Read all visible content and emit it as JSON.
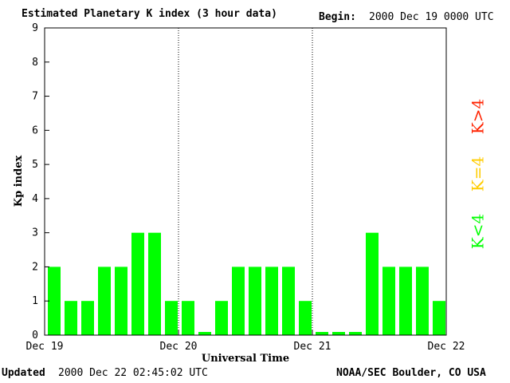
{
  "header": {
    "title": "Estimated Planetary K index (3 hour data)",
    "begin_label": "Begin:",
    "begin_value": "2000 Dec 19 0000 UTC"
  },
  "footer": {
    "updated_label": "Updated",
    "updated_value": "2000 Dec 22 02:45:02 UTC",
    "org": "NOAA/SEC Boulder, CO USA"
  },
  "colors": {
    "low": "#00ff00",
    "moderate": "#ffcc00",
    "high": "#ff2200",
    "axis": "#000000"
  },
  "legend": [
    {
      "label": "K<4",
      "color": "#00ff00"
    },
    {
      "label": "K=4",
      "color": "#ffcc00"
    },
    {
      "label": "K>4",
      "color": "#ff2200"
    }
  ],
  "chart_data": {
    "type": "bar",
    "title": "Estimated Planetary K index (3 hour data)",
    "xlabel": "Universal Time",
    "ylabel": "Kp index",
    "ylim": [
      0,
      9
    ],
    "yticks": [
      "0",
      "1",
      "2",
      "3",
      "4",
      "5",
      "6",
      "7",
      "8",
      "9"
    ],
    "xticks": [
      "Dec 19",
      "Dec 20",
      "Dec 21",
      "Dec 22"
    ],
    "day_separators": [
      "Dec 20",
      "Dec 21"
    ],
    "interval_hours": 3,
    "values": [
      2,
      1,
      1,
      2,
      2,
      3,
      3,
      1,
      1,
      0,
      1,
      2,
      2,
      2,
      2,
      1,
      0,
      0,
      0,
      3,
      2,
      2,
      2,
      1
    ],
    "legend_position": "right",
    "grid": false
  }
}
